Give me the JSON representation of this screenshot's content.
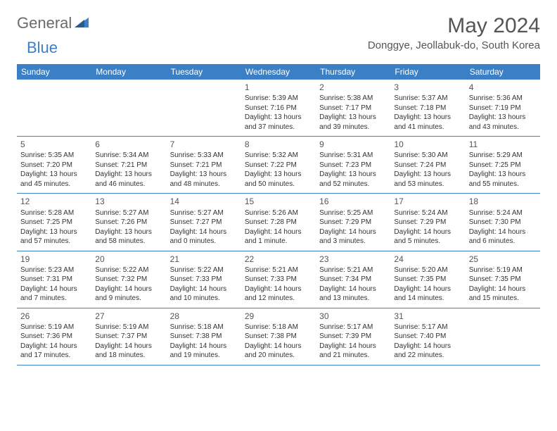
{
  "brand": {
    "text1": "General",
    "text2": "Blue"
  },
  "title": "May 2024",
  "location": "Donggye, Jeollabuk-do, South Korea",
  "colors": {
    "header_bg": "#3b7fc4",
    "header_text": "#ffffff",
    "body_text": "#333333",
    "title_text": "#555555",
    "row_border": "#3b7fc4",
    "logo_gray": "#6b6b6b",
    "logo_blue": "#3b7fc4"
  },
  "day_names": [
    "Sunday",
    "Monday",
    "Tuesday",
    "Wednesday",
    "Thursday",
    "Friday",
    "Saturday"
  ],
  "weeks": [
    [
      null,
      null,
      null,
      {
        "d": "1",
        "sr": "5:39 AM",
        "ss": "7:16 PM",
        "dl1": "Daylight: 13 hours",
        "dl2": "and 37 minutes."
      },
      {
        "d": "2",
        "sr": "5:38 AM",
        "ss": "7:17 PM",
        "dl1": "Daylight: 13 hours",
        "dl2": "and 39 minutes."
      },
      {
        "d": "3",
        "sr": "5:37 AM",
        "ss": "7:18 PM",
        "dl1": "Daylight: 13 hours",
        "dl2": "and 41 minutes."
      },
      {
        "d": "4",
        "sr": "5:36 AM",
        "ss": "7:19 PM",
        "dl1": "Daylight: 13 hours",
        "dl2": "and 43 minutes."
      }
    ],
    [
      {
        "d": "5",
        "sr": "5:35 AM",
        "ss": "7:20 PM",
        "dl1": "Daylight: 13 hours",
        "dl2": "and 45 minutes."
      },
      {
        "d": "6",
        "sr": "5:34 AM",
        "ss": "7:21 PM",
        "dl1": "Daylight: 13 hours",
        "dl2": "and 46 minutes."
      },
      {
        "d": "7",
        "sr": "5:33 AM",
        "ss": "7:21 PM",
        "dl1": "Daylight: 13 hours",
        "dl2": "and 48 minutes."
      },
      {
        "d": "8",
        "sr": "5:32 AM",
        "ss": "7:22 PM",
        "dl1": "Daylight: 13 hours",
        "dl2": "and 50 minutes."
      },
      {
        "d": "9",
        "sr": "5:31 AM",
        "ss": "7:23 PM",
        "dl1": "Daylight: 13 hours",
        "dl2": "and 52 minutes."
      },
      {
        "d": "10",
        "sr": "5:30 AM",
        "ss": "7:24 PM",
        "dl1": "Daylight: 13 hours",
        "dl2": "and 53 minutes."
      },
      {
        "d": "11",
        "sr": "5:29 AM",
        "ss": "7:25 PM",
        "dl1": "Daylight: 13 hours",
        "dl2": "and 55 minutes."
      }
    ],
    [
      {
        "d": "12",
        "sr": "5:28 AM",
        "ss": "7:25 PM",
        "dl1": "Daylight: 13 hours",
        "dl2": "and 57 minutes."
      },
      {
        "d": "13",
        "sr": "5:27 AM",
        "ss": "7:26 PM",
        "dl1": "Daylight: 13 hours",
        "dl2": "and 58 minutes."
      },
      {
        "d": "14",
        "sr": "5:27 AM",
        "ss": "7:27 PM",
        "dl1": "Daylight: 14 hours",
        "dl2": "and 0 minutes."
      },
      {
        "d": "15",
        "sr": "5:26 AM",
        "ss": "7:28 PM",
        "dl1": "Daylight: 14 hours",
        "dl2": "and 1 minute."
      },
      {
        "d": "16",
        "sr": "5:25 AM",
        "ss": "7:29 PM",
        "dl1": "Daylight: 14 hours",
        "dl2": "and 3 minutes."
      },
      {
        "d": "17",
        "sr": "5:24 AM",
        "ss": "7:29 PM",
        "dl1": "Daylight: 14 hours",
        "dl2": "and 5 minutes."
      },
      {
        "d": "18",
        "sr": "5:24 AM",
        "ss": "7:30 PM",
        "dl1": "Daylight: 14 hours",
        "dl2": "and 6 minutes."
      }
    ],
    [
      {
        "d": "19",
        "sr": "5:23 AM",
        "ss": "7:31 PM",
        "dl1": "Daylight: 14 hours",
        "dl2": "and 7 minutes."
      },
      {
        "d": "20",
        "sr": "5:22 AM",
        "ss": "7:32 PM",
        "dl1": "Daylight: 14 hours",
        "dl2": "and 9 minutes."
      },
      {
        "d": "21",
        "sr": "5:22 AM",
        "ss": "7:33 PM",
        "dl1": "Daylight: 14 hours",
        "dl2": "and 10 minutes."
      },
      {
        "d": "22",
        "sr": "5:21 AM",
        "ss": "7:33 PM",
        "dl1": "Daylight: 14 hours",
        "dl2": "and 12 minutes."
      },
      {
        "d": "23",
        "sr": "5:21 AM",
        "ss": "7:34 PM",
        "dl1": "Daylight: 14 hours",
        "dl2": "and 13 minutes."
      },
      {
        "d": "24",
        "sr": "5:20 AM",
        "ss": "7:35 PM",
        "dl1": "Daylight: 14 hours",
        "dl2": "and 14 minutes."
      },
      {
        "d": "25",
        "sr": "5:19 AM",
        "ss": "7:35 PM",
        "dl1": "Daylight: 14 hours",
        "dl2": "and 15 minutes."
      }
    ],
    [
      {
        "d": "26",
        "sr": "5:19 AM",
        "ss": "7:36 PM",
        "dl1": "Daylight: 14 hours",
        "dl2": "and 17 minutes."
      },
      {
        "d": "27",
        "sr": "5:19 AM",
        "ss": "7:37 PM",
        "dl1": "Daylight: 14 hours",
        "dl2": "and 18 minutes."
      },
      {
        "d": "28",
        "sr": "5:18 AM",
        "ss": "7:38 PM",
        "dl1": "Daylight: 14 hours",
        "dl2": "and 19 minutes."
      },
      {
        "d": "29",
        "sr": "5:18 AM",
        "ss": "7:38 PM",
        "dl1": "Daylight: 14 hours",
        "dl2": "and 20 minutes."
      },
      {
        "d": "30",
        "sr": "5:17 AM",
        "ss": "7:39 PM",
        "dl1": "Daylight: 14 hours",
        "dl2": "and 21 minutes."
      },
      {
        "d": "31",
        "sr": "5:17 AM",
        "ss": "7:40 PM",
        "dl1": "Daylight: 14 hours",
        "dl2": "and 22 minutes."
      },
      null
    ]
  ]
}
